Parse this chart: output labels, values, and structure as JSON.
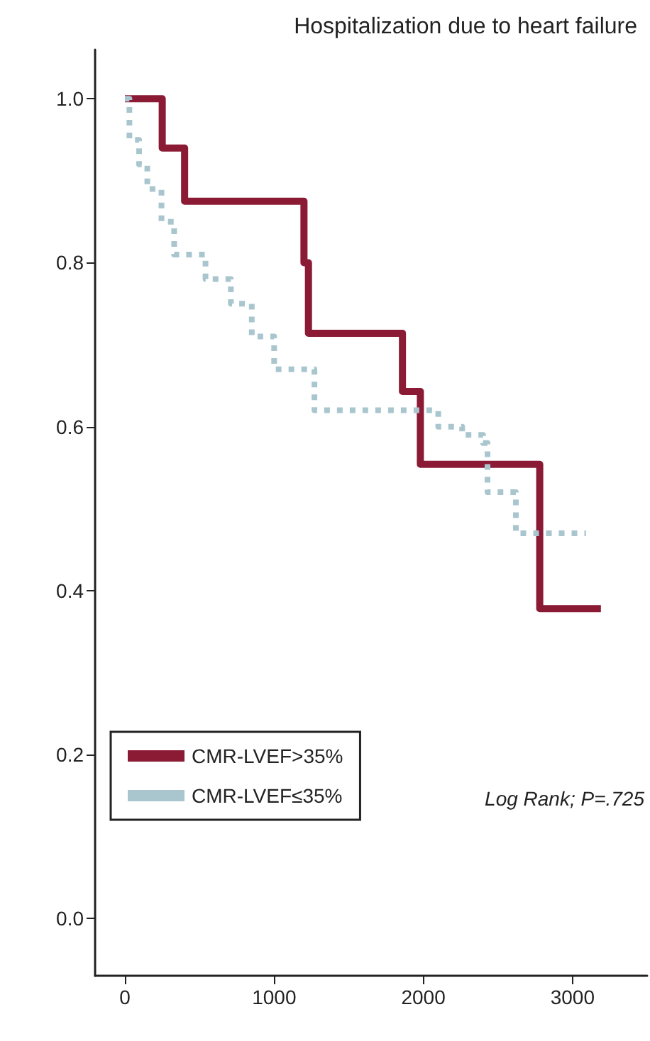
{
  "chart_data": {
    "type": "step",
    "title": "Hospitalization due to heart failure",
    "xlim": [
      -200,
      3500
    ],
    "xticks": [
      0,
      1000,
      2000,
      3000
    ],
    "ylim": [
      -0.07,
      1.06
    ],
    "yticks": [
      {
        "value": 0,
        "label": "0.0"
      },
      {
        "value": 0.2,
        "label": "0.2"
      },
      {
        "value": 0.4,
        "label": "0.4"
      },
      {
        "value": 0.6,
        "label": "0.6"
      },
      {
        "value": 0.8,
        "label": "0.8"
      },
      {
        "value": 1,
        "label": "1.0"
      }
    ],
    "grid": false,
    "legend": "bottom left",
    "marker": "none",
    "annotations": [
      "Log Rank; P=.725"
    ],
    "series": [
      {
        "name": "CMR-LVEF>35%",
        "color": "#8b1a35",
        "line_style": "solid",
        "x": [
          0,
          250,
          400,
          1200,
          1230,
          1860,
          1980,
          2780,
          3190
        ],
        "values": [
          1.0,
          0.94,
          0.875,
          0.8,
          0.714,
          0.643,
          0.554,
          0.378,
          0.378
        ]
      },
      {
        "name": "CMR-LVEF≤35%",
        "color": "#a9c6cf",
        "line_style": "dotted",
        "x": [
          0,
          30,
          95,
          150,
          245,
          330,
          540,
          710,
          850,
          1000,
          1270,
          2100,
          2260,
          2400,
          2430,
          2620,
          3090
        ],
        "values": [
          1.0,
          0.95,
          0.92,
          0.89,
          0.85,
          0.81,
          0.78,
          0.75,
          0.71,
          0.67,
          0.62,
          0.6,
          0.59,
          0.58,
          0.52,
          0.47,
          0.47
        ]
      }
    ]
  }
}
